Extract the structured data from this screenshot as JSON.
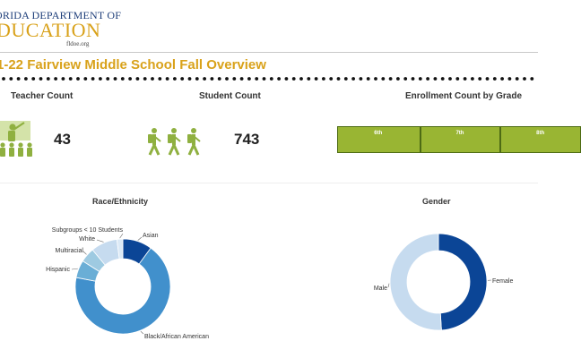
{
  "logo": {
    "line1": "ORIDA DEPARTMENT OF",
    "line2": "DUCATION",
    "line3": "fldoe.org"
  },
  "page_title": "1-22 Fairview Middle School Fall Overview",
  "kpis": {
    "teacher": {
      "title": "Teacher Count",
      "value": "43",
      "icon": "teacher-icon"
    },
    "student": {
      "title": "Student Count",
      "value": "743",
      "icon": "students-walking-icon"
    }
  },
  "enrollment": {
    "title": "Enrollment Count by Grade"
  },
  "colors": {
    "brand_gold": "#d9a21b",
    "brand_navy": "#1f3f7a",
    "bar_green": "#99b533",
    "icon_green": "#8fb040",
    "blue_dark": "#0b4596",
    "blue_mid": "#4190cc",
    "blue_light": "#c6dbef"
  },
  "chart_data": [
    {
      "type": "bar",
      "title": "Enrollment Count by Grade",
      "orientation": "horizontal-stacked",
      "categories": [
        "6th",
        "7th",
        "8th"
      ],
      "values": [
        253,
        245,
        245
      ]
    },
    {
      "type": "pie",
      "variant": "donut",
      "title": "Race/Ethnicity",
      "labels": [
        "Asian",
        "Black/African American",
        "Hispanic",
        "Multiracial",
        "White",
        "Subgroups < 10 Students"
      ],
      "values": [
        10,
        68,
        6,
        5,
        9,
        2
      ],
      "colors": [
        "#0b4596",
        "#4190cc",
        "#6aaed6",
        "#9ecae1",
        "#c6dbef",
        "#dbe9f6"
      ]
    },
    {
      "type": "pie",
      "variant": "donut",
      "title": "Gender",
      "labels": [
        "Female",
        "Male"
      ],
      "values": [
        49,
        51
      ],
      "colors": [
        "#0b4596",
        "#c6dbef"
      ]
    }
  ]
}
